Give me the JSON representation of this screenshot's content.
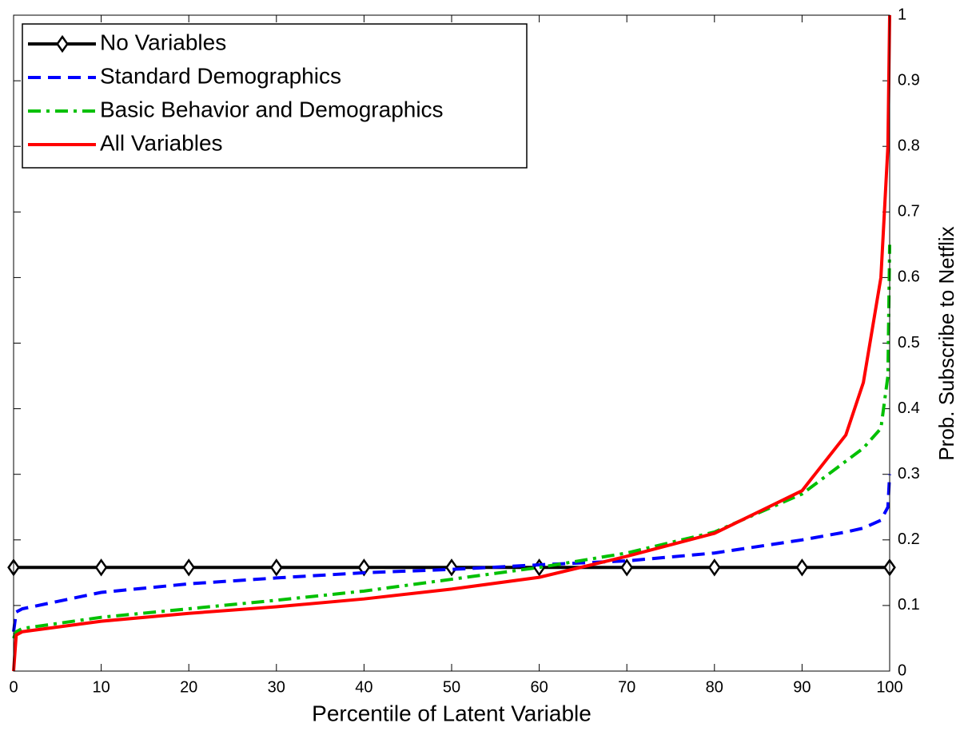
{
  "chart_data": {
    "type": "line",
    "xlabel": "Percentile of Latent Variable",
    "ylabel": "Prob. Subscribe to Netflix",
    "y_axis_side": "right",
    "legend": "upper left",
    "x": [
      0,
      0.3,
      1,
      10,
      20,
      30,
      40,
      50,
      60,
      70,
      80,
      90,
      95,
      97,
      99,
      99.8,
      100
    ],
    "xlim": [
      0,
      100
    ],
    "xticks": [
      0,
      10,
      20,
      30,
      40,
      50,
      60,
      70,
      80,
      90,
      100
    ],
    "ylim": [
      0,
      1
    ],
    "yticks": [
      0,
      0.1,
      0.2,
      0.3,
      0.4,
      0.5,
      0.6,
      0.7,
      0.8,
      0.9,
      1
    ],
    "series": [
      {
        "name": "No Variables",
        "color": "#000000",
        "linestyle": "solid",
        "marker": "diamond",
        "x": [
          0,
          10,
          20,
          30,
          40,
          50,
          60,
          70,
          80,
          90,
          100
        ],
        "values": [
          0.158,
          0.158,
          0.158,
          0.158,
          0.158,
          0.158,
          0.158,
          0.158,
          0.158,
          0.158,
          0.158
        ]
      },
      {
        "name": "Standard Demographics",
        "color": "#0000ff",
        "linestyle": "dashed",
        "values": [
          0.06,
          0.09,
          0.095,
          0.12,
          0.133,
          0.142,
          0.15,
          0.155,
          0.162,
          0.168,
          0.18,
          0.2,
          0.212,
          0.218,
          0.23,
          0.25,
          0.3
        ]
      },
      {
        "name": "Basic Behavior and Demographics",
        "color": "#00c000",
        "linestyle": "dashdot",
        "values": [
          0.05,
          0.06,
          0.065,
          0.082,
          0.095,
          0.108,
          0.122,
          0.14,
          0.158,
          0.18,
          0.212,
          0.27,
          0.32,
          0.34,
          0.37,
          0.45,
          0.65
        ]
      },
      {
        "name": "All Variables",
        "color": "#ff0000",
        "linestyle": "solid",
        "values": [
          0,
          0.055,
          0.06,
          0.076,
          0.088,
          0.098,
          0.11,
          0.125,
          0.143,
          0.175,
          0.21,
          0.275,
          0.36,
          0.44,
          0.6,
          0.8,
          1
        ]
      }
    ]
  }
}
